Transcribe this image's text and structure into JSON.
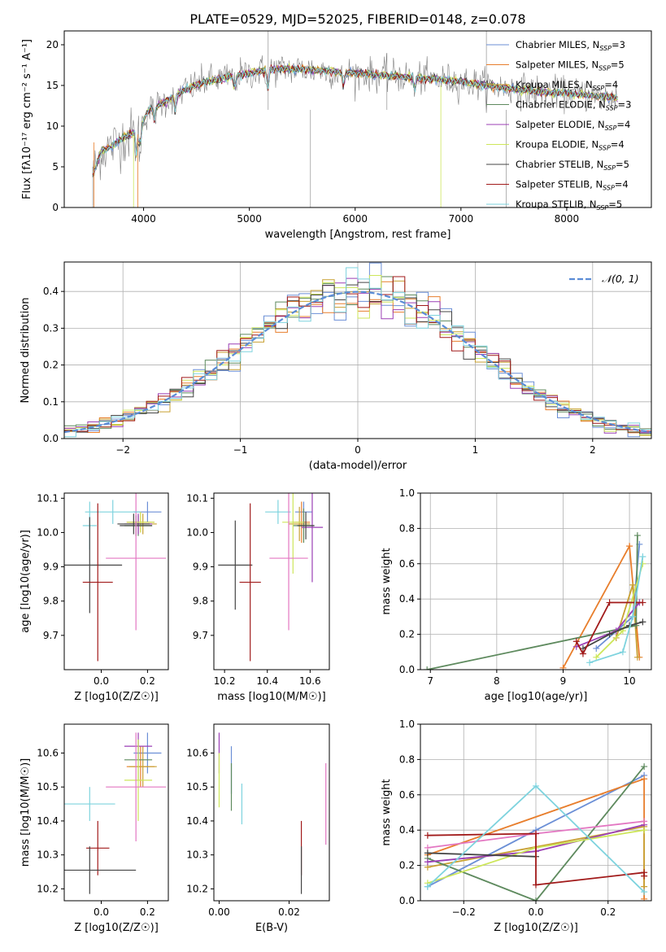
{
  "figure_title": "PLATE=0529, MJD=52025, FIBERID=0148, z=0.078",
  "chart_data": [
    {
      "id": "spectrum",
      "type": "line",
      "title": "PLATE=0529, MJD=52025, FIBERID=0148, z=0.078",
      "xlabel": "wavelength [Angstrom, rest frame]",
      "ylabel": "Flux [fλ10⁻¹⁷ erg cm⁻² s⁻¹ A⁻¹]",
      "xlim": [
        3250,
        8800
      ],
      "ylim": [
        0,
        21.7
      ],
      "xticks": [
        4000,
        5000,
        6000,
        7000,
        8000
      ],
      "yticks": [
        0,
        5,
        10,
        15,
        20
      ],
      "grid": false,
      "legend": "upper right",
      "data_color": "#808080",
      "data_range": [
        3520,
        8480
      ],
      "continuum": [
        [
          3520,
          4
        ],
        [
          3600,
          7
        ],
        [
          3700,
          7.5
        ],
        [
          3800,
          8.5
        ],
        [
          3950,
          9.5
        ],
        [
          4050,
          12
        ],
        [
          4200,
          13
        ],
        [
          4400,
          14.5
        ],
        [
          4600,
          15.5
        ],
        [
          4800,
          16
        ],
        [
          5000,
          16.5
        ],
        [
          5200,
          17
        ],
        [
          5500,
          17
        ],
        [
          6000,
          16.5
        ],
        [
          6500,
          16
        ],
        [
          7000,
          15.5
        ],
        [
          7500,
          14.5
        ],
        [
          8000,
          14
        ],
        [
          8480,
          13.5
        ]
      ],
      "series": [
        {
          "name": "Chabrier MILES, N_SSP=3",
          "color": "#6b8fd6"
        },
        {
          "name": "Salpeter MILES, N_SSP=5",
          "color": "#e87e2c"
        },
        {
          "name": "Kroupa MILES, N_SSP=4",
          "color": "#c8a032"
        },
        {
          "name": "Chabrier ELODIE, N_SSP=3",
          "color": "#5e8a5e"
        },
        {
          "name": "Salpeter ELODIE, N_SSP=4",
          "color": "#9b3fb5"
        },
        {
          "name": "Kroupa ELODIE, N_SSP=4",
          "color": "#cde65a"
        },
        {
          "name": "Chabrier STELIB, N_SSP=5",
          "color": "#444444"
        },
        {
          "name": "Salpeter STELIB, N_SSP=4",
          "color": "#a11a1a"
        },
        {
          "name": "Kroupa STELIB, N_SSP=5",
          "color": "#7ed3de"
        }
      ]
    },
    {
      "id": "residuals",
      "type": "line",
      "xlabel": "(data-model)/error",
      "ylabel": "Normed distribution",
      "xlim": [
        -2.5,
        2.5
      ],
      "ylim": [
        0,
        0.48
      ],
      "xticks": [
        -2,
        -1,
        0,
        1,
        2
      ],
      "yticks": [
        0.0,
        0.1,
        0.2,
        0.3,
        0.4
      ],
      "grid": true,
      "legend": "upper right",
      "gaussian": {
        "name": "𝒩(0, 1)",
        "color": "#5b8cd6"
      },
      "bin_width": 0.1,
      "hist_colors": [
        "#6b8fd6",
        "#e87e2c",
        "#c8a032",
        "#5e8a5e",
        "#9b3fb5",
        "#cde65a",
        "#444444",
        "#a11a1a",
        "#7ed3de"
      ]
    },
    {
      "id": "age-vs-Z",
      "type": "scatter",
      "xlabel": "Z [log10(Z/Z☉)]",
      "ylabel": "age  [log10(age/yr)]",
      "xlim": [
        -0.16,
        0.29
      ],
      "ylim": [
        9.6,
        10.115
      ],
      "xticks": [
        0.0,
        0.2
      ],
      "yticks": [
        9.7,
        9.8,
        9.9,
        10.0,
        10.1
      ],
      "grid": false,
      "points": [
        {
          "x": 0.2,
          "y": 10.06,
          "xerr": 0.06,
          "yerr": 0.03,
          "color": "#6b8fd6"
        },
        {
          "x": 0.17,
          "y": 10.03,
          "xerr": 0.06,
          "yerr": 0.03,
          "color": "#e87e2c"
        },
        {
          "x": 0.18,
          "y": 10.025,
          "xerr": 0.06,
          "yerr": 0.03,
          "color": "#c8a032"
        },
        {
          "x": 0.16,
          "y": 10.02,
          "xerr": 0.06,
          "yerr": 0.03,
          "color": "#5e8a5e"
        },
        {
          "x": 0.16,
          "y": 10.025,
          "xerr": 0.06,
          "yerr": 0.03,
          "color": "#9b3fb5"
        },
        {
          "x": 0.17,
          "y": 10.03,
          "xerr": 0.06,
          "yerr": 0.03,
          "color": "#cde65a"
        },
        {
          "x": 0.15,
          "y": 10.02,
          "xerr": 0.07,
          "yerr": 0.03,
          "color": "#444444"
        },
        {
          "x": 0.14,
          "y": 10.025,
          "xerr": 0.07,
          "yerr": 0.03,
          "color": "#444444"
        },
        {
          "x": 0.15,
          "y": 9.925,
          "xerr": 0.13,
          "yerr": 0.21,
          "color": "#e377c2"
        },
        {
          "x": 0.05,
          "y": 10.06,
          "xerr": 0.12,
          "yerr": 0.035,
          "color": "#7ed3de"
        },
        {
          "x": -0.05,
          "y": 10.02,
          "xerr": 0.03,
          "yerr": 0.07,
          "color": "#7ed3de"
        },
        {
          "x": -0.05,
          "y": 9.905,
          "xerr": 0.14,
          "yerr": 0.14,
          "color": "#444444"
        },
        {
          "x": -0.015,
          "y": 9.855,
          "xerr": 0.065,
          "yerr": 0.23,
          "color": "#a11a1a"
        }
      ]
    },
    {
      "id": "age-vs-mass",
      "type": "scatter",
      "xlabel": "mass [log10(M/M☉)]",
      "ylabel": "",
      "xlim": [
        10.15,
        10.69
      ],
      "ylim": [
        9.6,
        10.115
      ],
      "xticks": [
        10.2,
        10.4,
        10.6
      ],
      "yticks": [
        9.7,
        9.8,
        9.9,
        10.0,
        10.1
      ],
      "grid": false,
      "points": [
        {
          "x": 10.57,
          "y": 10.06,
          "xerr": 0.04,
          "yerr": 0.03,
          "color": "#6b8fd6"
        },
        {
          "x": 10.56,
          "y": 10.03,
          "xerr": 0.04,
          "yerr": 0.06,
          "color": "#e87e2c"
        },
        {
          "x": 10.55,
          "y": 10.025,
          "xerr": 0.05,
          "yerr": 0.05,
          "color": "#c8a032"
        },
        {
          "x": 10.57,
          "y": 10.02,
          "xerr": 0.05,
          "yerr": 0.05,
          "color": "#5e8a5e"
        },
        {
          "x": 10.61,
          "y": 10.015,
          "xerr": 0.05,
          "yerr": 0.16,
          "color": "#9b3fb5"
        },
        {
          "x": 10.52,
          "y": 10.03,
          "xerr": 0.05,
          "yerr": 0.15,
          "color": "#cde65a"
        },
        {
          "x": 10.58,
          "y": 10.02,
          "xerr": 0.04,
          "yerr": 0.04,
          "color": "#444444"
        },
        {
          "x": 10.45,
          "y": 10.06,
          "xerr": 0.06,
          "yerr": 0.035,
          "color": "#7ed3de"
        },
        {
          "x": 10.5,
          "y": 9.925,
          "xerr": 0.09,
          "yerr": 0.21,
          "color": "#e377c2"
        },
        {
          "x": 10.25,
          "y": 9.905,
          "xerr": 0.08,
          "yerr": 0.13,
          "color": "#444444"
        },
        {
          "x": 10.32,
          "y": 9.855,
          "xerr": 0.05,
          "yerr": 0.23,
          "color": "#a11a1a"
        }
      ]
    },
    {
      "id": "mass-weight-vs-age",
      "type": "line",
      "xlabel": "age  [log10(age/yr)]",
      "ylabel": "mass weight",
      "xlim": [
        6.85,
        10.33
      ],
      "ylim": [
        0.0,
        1.0
      ],
      "xticks": [
        7,
        8,
        9,
        10
      ],
      "yticks": [
        0.0,
        0.2,
        0.4,
        0.6,
        0.8,
        1.0
      ],
      "grid": true,
      "series": [
        {
          "color": "#6b8fd6",
          "points": [
            [
              9.5,
              0.12
            ],
            [
              10.05,
              0.3
            ],
            [
              10.15,
              0.71
            ]
          ]
        },
        {
          "color": "#e87e2c",
          "points": [
            [
              9.0,
              0.01
            ],
            [
              10.0,
              0.7
            ],
            [
              10.15,
              0.07
            ]
          ]
        },
        {
          "color": "#c8a032",
          "points": [
            [
              9.8,
              0.18
            ],
            [
              10.05,
              0.48
            ],
            [
              10.12,
              0.07
            ]
          ]
        },
        {
          "color": "#5e8a5e",
          "points": [
            [
              6.95,
              0.0
            ],
            [
              10.1,
              0.25
            ],
            [
              10.12,
              0.76
            ]
          ]
        },
        {
          "color": "#9b3fb5",
          "points": [
            [
              9.2,
              0.13
            ],
            [
              9.8,
              0.22
            ],
            [
              10.15,
              0.38
            ]
          ]
        },
        {
          "color": "#cde65a",
          "points": [
            [
              9.5,
              0.07
            ],
            [
              9.9,
              0.22
            ],
            [
              10.2,
              0.6
            ]
          ]
        },
        {
          "color": "#444444",
          "points": [
            [
              9.3,
              0.12
            ],
            [
              9.7,
              0.2
            ],
            [
              10.0,
              0.25
            ],
            [
              10.2,
              0.27
            ]
          ]
        },
        {
          "color": "#a11a1a",
          "points": [
            [
              9.2,
              0.16
            ],
            [
              9.3,
              0.09
            ],
            [
              9.7,
              0.38
            ],
            [
              10.2,
              0.38
            ]
          ]
        },
        {
          "color": "#7ed3de",
          "points": [
            [
              9.4,
              0.04
            ],
            [
              9.9,
              0.1
            ],
            [
              10.05,
              0.3
            ],
            [
              10.2,
              0.64
            ]
          ]
        }
      ]
    },
    {
      "id": "mass-vs-Z",
      "type": "scatter",
      "xlabel": "Z [log10(Z/Z☉)]",
      "ylabel": "mass [log10(M/M☉)]",
      "xlim": [
        -0.16,
        0.29
      ],
      "ylim": [
        10.165,
        10.685
      ],
      "xticks": [
        0.0,
        0.2
      ],
      "yticks": [
        10.2,
        10.3,
        10.4,
        10.5,
        10.6
      ],
      "grid": false,
      "points": [
        {
          "x": 0.2,
          "y": 10.6,
          "xerr": 0.06,
          "yerr": 0.06,
          "color": "#6b8fd6"
        },
        {
          "x": 0.17,
          "y": 10.56,
          "xerr": 0.06,
          "yerr": 0.06,
          "color": "#e87e2c"
        },
        {
          "x": 0.18,
          "y": 10.56,
          "xerr": 0.06,
          "yerr": 0.06,
          "color": "#c8a032"
        },
        {
          "x": 0.16,
          "y": 10.58,
          "xerr": 0.06,
          "yerr": 0.06,
          "color": "#5e8a5e"
        },
        {
          "x": 0.16,
          "y": 10.62,
          "xerr": 0.06,
          "yerr": 0.04,
          "color": "#9b3fb5"
        },
        {
          "x": 0.16,
          "y": 10.52,
          "xerr": 0.06,
          "yerr": 0.12,
          "color": "#cde65a"
        },
        {
          "x": 0.15,
          "y": 10.5,
          "xerr": 0.13,
          "yerr": 0.16,
          "color": "#e377c2"
        },
        {
          "x": -0.05,
          "y": 10.45,
          "xerr": 0.11,
          "yerr": 0.05,
          "color": "#7ed3de"
        },
        {
          "x": -0.015,
          "y": 10.32,
          "xerr": 0.05,
          "yerr": 0.08,
          "color": "#a11a1a"
        },
        {
          "x": -0.05,
          "y": 10.255,
          "xerr": 0.2,
          "yerr": 0.07,
          "color": "#444444"
        }
      ]
    },
    {
      "id": "mass-vs-EBV",
      "type": "scatter",
      "xlabel": "E(B-V)",
      "ylabel": "",
      "xlim": [
        -0.0015,
        0.0315
      ],
      "ylim": [
        10.165,
        10.685
      ],
      "xticks": [
        0.0,
        0.02
      ],
      "yticks": [
        10.2,
        10.3,
        10.4,
        10.5,
        10.6
      ],
      "grid": false,
      "points": [
        {
          "x": 0.0,
          "y": 10.6,
          "xerr": 0.0,
          "yerr": 0.06,
          "color": "#9b3fb5"
        },
        {
          "x": 0.0,
          "y": 10.52,
          "xerr": 0.0,
          "yerr": 0.08,
          "color": "#cde65a"
        },
        {
          "x": 0.0035,
          "y": 10.55,
          "xerr": 0.0,
          "yerr": 0.07,
          "color": "#6b8fd6"
        },
        {
          "x": 0.0035,
          "y": 10.5,
          "xerr": 0.0,
          "yerr": 0.07,
          "color": "#5e8a5e"
        },
        {
          "x": 0.0065,
          "y": 10.45,
          "xerr": 0.0,
          "yerr": 0.06,
          "color": "#7ed3de"
        },
        {
          "x": 0.0235,
          "y": 10.32,
          "xerr": 0.0,
          "yerr": 0.08,
          "color": "#a11a1a"
        },
        {
          "x": 0.0235,
          "y": 10.255,
          "xerr": 0.0,
          "yerr": 0.07,
          "color": "#444444"
        },
        {
          "x": 0.0305,
          "y": 10.45,
          "xerr": 0.0,
          "yerr": 0.12,
          "color": "#e377c2"
        }
      ]
    },
    {
      "id": "mass-weight-vs-Z",
      "type": "line",
      "xlabel": "Z [log10(Z/Z☉)]",
      "ylabel": "mass weight",
      "xlim": [
        -0.32,
        0.32
      ],
      "ylim": [
        0.0,
        1.0
      ],
      "xticks": [
        -0.2,
        0.0,
        0.2
      ],
      "yticks": [
        0.0,
        0.2,
        0.4,
        0.6,
        0.8,
        1.0
      ],
      "grid": true,
      "series": [
        {
          "color": "#6b8fd6",
          "points": [
            [
              -0.3,
              0.08
            ],
            [
              0.0,
              0.4
            ],
            [
              0.3,
              0.71
            ]
          ]
        },
        {
          "color": "#e87e2c",
          "points": [
            [
              -0.3,
              0.26
            ],
            [
              0.3,
              0.69
            ],
            [
              0.3,
              0.01
            ]
          ]
        },
        {
          "color": "#c8a032",
          "points": [
            [
              -0.3,
              0.19
            ],
            [
              0.3,
              0.42
            ],
            [
              0.3,
              0.08
            ]
          ]
        },
        {
          "color": "#5e8a5e",
          "points": [
            [
              -0.3,
              0.24
            ],
            [
              0.0,
              0.0
            ],
            [
              0.3,
              0.76
            ]
          ]
        },
        {
          "color": "#9b3fb5",
          "points": [
            [
              -0.3,
              0.22
            ],
            [
              0.0,
              0.28
            ],
            [
              0.3,
              0.43
            ]
          ]
        },
        {
          "color": "#cde65a",
          "points": [
            [
              -0.3,
              0.1
            ],
            [
              0.0,
              0.3
            ],
            [
              0.3,
              0.4
            ]
          ]
        },
        {
          "color": "#e377c2",
          "points": [
            [
              -0.3,
              0.3
            ],
            [
              0.0,
              0.38
            ],
            [
              0.3,
              0.45
            ]
          ]
        },
        {
          "color": "#444444",
          "points": [
            [
              -0.3,
              0.27
            ],
            [
              0.0,
              0.25
            ]
          ]
        },
        {
          "color": "#a11a1a",
          "points": [
            [
              -0.3,
              0.37
            ],
            [
              0.0,
              0.38
            ],
            [
              0.0,
              0.09
            ],
            [
              0.3,
              0.16
            ],
            [
              0.3,
              0.14
            ]
          ]
        },
        {
          "color": "#7ed3de",
          "points": [
            [
              -0.3,
              0.08
            ],
            [
              0.0,
              0.65
            ],
            [
              0.3,
              0.05
            ]
          ]
        }
      ]
    }
  ]
}
